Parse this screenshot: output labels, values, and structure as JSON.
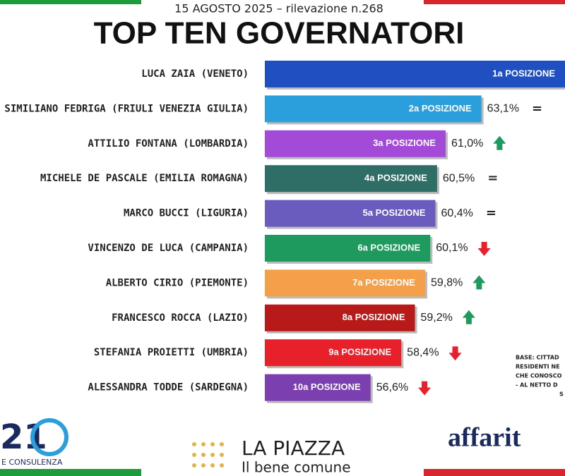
{
  "chart_data": {
    "type": "hbar",
    "subtitle": "15 AGOSTO 2025 – rilevazione n.268",
    "title": "TOP TEN GOVERNATORI",
    "categories": [
      "LUCA ZAIA (VENETO)",
      "SIMILIANO FEDRIGA (FRIULI VENEZIA GIULIA)",
      "ATTILIO FONTANA (LOMBARDIA)",
      "MICHELE DE PASCALE (EMILIA ROMAGNA)",
      "MARCO BUCCI (LIGURIA)",
      "VINCENZO DE LUCA (CAMPANIA)",
      "ALBERTO CIRIO (PIEMONTE)",
      "FRANCESCO ROCCA (LAZIO)",
      "STEFANIA PROIETTI (UMBRIA)",
      "ALESSANDRA TODDE (SARDEGNA)"
    ],
    "values": [
      68,
      63.1,
      61.0,
      60.5,
      60.4,
      60.1,
      59.8,
      59.2,
      58.4,
      56.6
    ],
    "value_labels": [
      null,
      "63,1%",
      "61,0%",
      "60,5%",
      "60,4%",
      "60,1%",
      "59,8%",
      "59,2%",
      "58,4%",
      "56,6%"
    ],
    "bar_labels": [
      "1a POSIZIONE",
      "2a POSIZIONE",
      "3a POSIZIONE",
      "4a POSIZIONE",
      "5a POSIZIONE",
      "6a POSIZIONE",
      "7a POSIZIONE",
      "8a POSIZIONE",
      "9a POSIZIONE",
      "10a POSIZIONE"
    ],
    "colors": [
      "#1f4fc1",
      "#2a9fdc",
      "#a34bd8",
      "#2e6e66",
      "#6a5bbf",
      "#1f9a5f",
      "#f4a04a",
      "#b81a1a",
      "#e8202a",
      "#7b3fb0"
    ],
    "trends": [
      null,
      "=",
      "up",
      "=",
      "=",
      "down",
      "up",
      "up",
      "down",
      "down"
    ],
    "xlim": [
      50.4,
      68
    ],
    "note": [
      "BASE: CITTAD",
      "RESIDENTI  NE",
      "CHE CONOSCO",
      "- AL NETTO D",
      "S"
    ]
  },
  "footer": {
    "logo1": "21",
    "logo1_sub": "E CONSULENZA",
    "logo2": "LA PIAZZA",
    "logo2_sub": "Il bene comune",
    "logo3": "affarit"
  }
}
